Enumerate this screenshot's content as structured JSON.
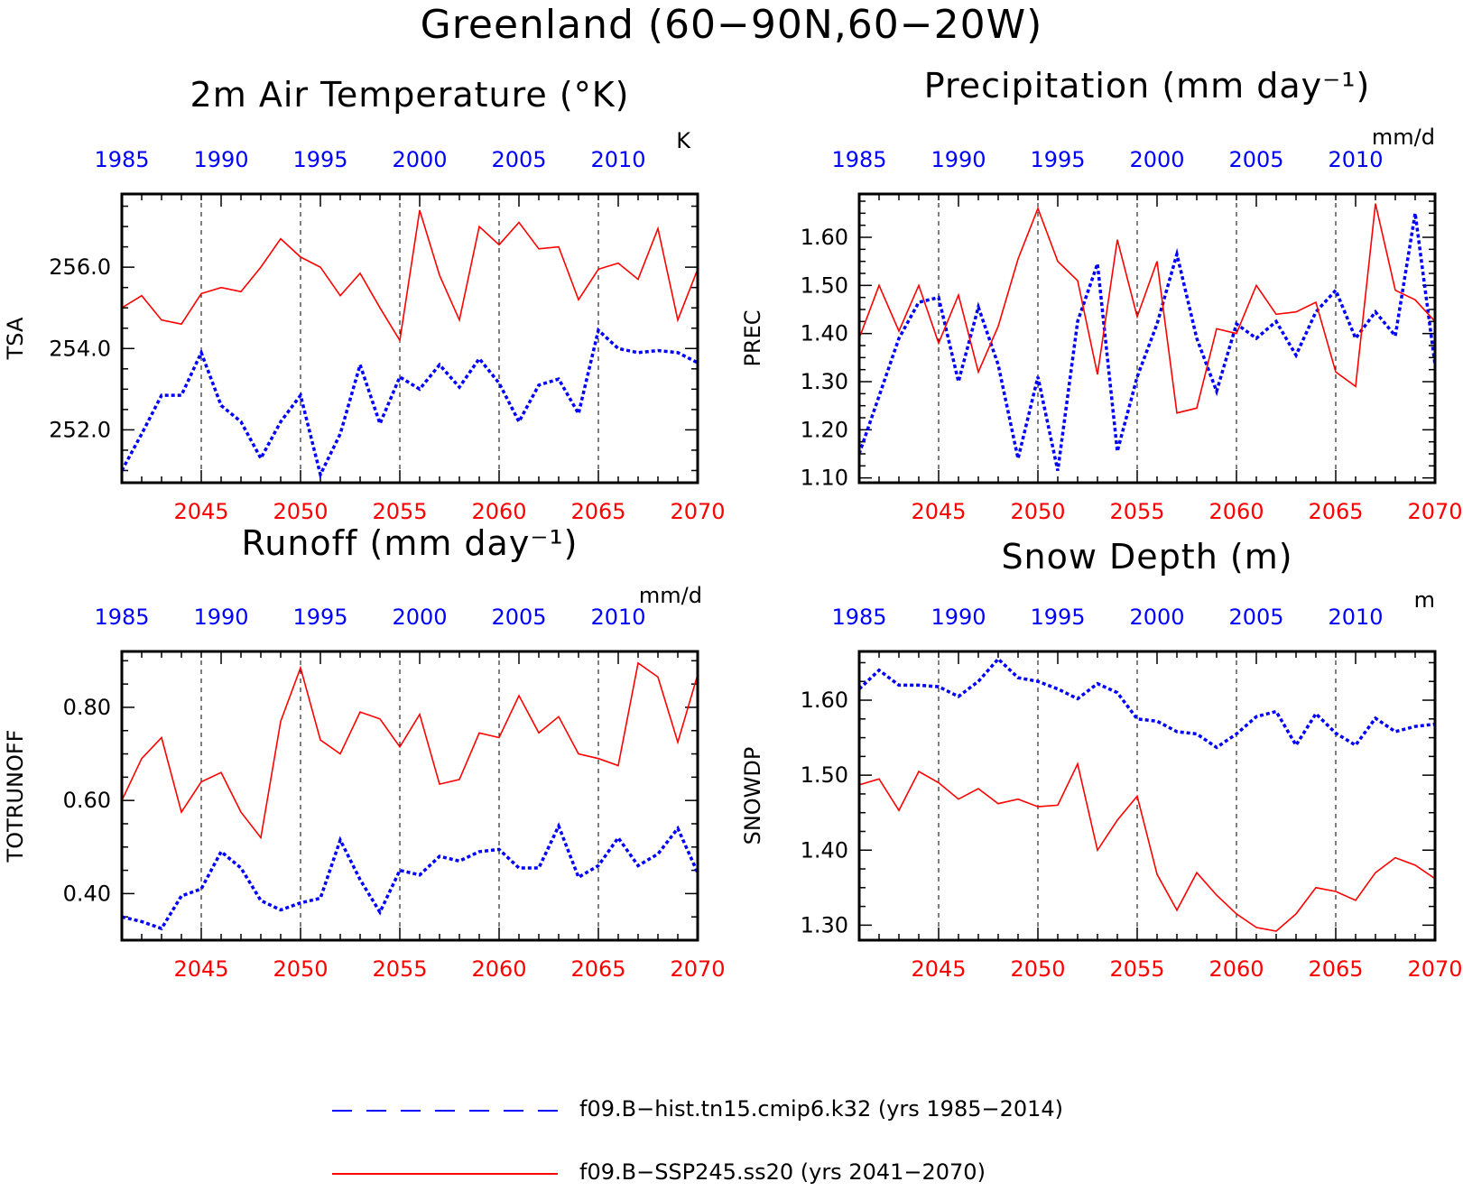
{
  "figure": {
    "title": "Greenland (60−90N,60−20W)"
  },
  "colors": {
    "hist": "#0000ff",
    "ssp": "#ff0000",
    "axis": "#000000",
    "grid": "#000000"
  },
  "legend": [
    {
      "label": "f09.B−hist.tn15.cmip6.k32 (yrs 1985−2014)",
      "color": "#0000ff",
      "style": "dashed"
    },
    {
      "label": "f09.B−SSP245.ss20 (yrs 2041−2070)",
      "color": "#ff0000",
      "style": "solid"
    }
  ],
  "chart_data": [
    {
      "type": "line",
      "title": "2m Air Temperature (°K)",
      "ylabel": "TSA",
      "units": "K",
      "ylim": [
        250.7,
        257.8
      ],
      "yticks": [
        252.0,
        254.0,
        256.0
      ],
      "ytick_labels": [
        "252.0",
        "254.0",
        "256.0"
      ],
      "top_xlim": [
        1985,
        2014
      ],
      "top_xticks": [
        1985,
        1990,
        1995,
        2000,
        2005,
        2010
      ],
      "bottom_xlim": [
        2041,
        2070
      ],
      "bottom_xticks": [
        2045,
        2050,
        2055,
        2060,
        2065,
        2070
      ],
      "grid": "dashed vertical lines at bottom ticks",
      "series": [
        {
          "key": "hist",
          "axis": "top",
          "x_start": 1985,
          "values": [
            251.0,
            251.9,
            252.85,
            252.85,
            253.9,
            252.6,
            252.2,
            251.3,
            252.2,
            252.85,
            250.9,
            251.9,
            253.6,
            252.15,
            253.3,
            253.0,
            253.6,
            253.05,
            253.75,
            253.15,
            252.2,
            253.1,
            253.25,
            252.4,
            254.45,
            254.0,
            253.9,
            253.95,
            253.9,
            253.65
          ]
        },
        {
          "key": "ssp",
          "axis": "bottom",
          "x_start": 2041,
          "values": [
            255.0,
            255.3,
            254.7,
            254.6,
            255.35,
            255.5,
            255.4,
            256.0,
            256.7,
            256.25,
            256.0,
            255.3,
            255.85,
            255.0,
            254.2,
            257.4,
            255.8,
            254.7,
            257.0,
            256.55,
            257.1,
            256.45,
            256.5,
            255.2,
            255.95,
            256.1,
            255.7,
            256.95,
            254.7,
            255.95
          ]
        }
      ]
    },
    {
      "type": "line",
      "title": "Precipitation (mm day⁻¹)",
      "ylabel": "PREC",
      "units": "mm/d",
      "ylim": [
        1.09,
        1.69
      ],
      "yticks": [
        1.1,
        1.2,
        1.3,
        1.4,
        1.5,
        1.6
      ],
      "ytick_labels": [
        "1.10",
        "1.20",
        "1.30",
        "1.40",
        "1.50",
        "1.60"
      ],
      "top_xlim": [
        1985,
        2014
      ],
      "top_xticks": [
        1985,
        1990,
        1995,
        2000,
        2005,
        2010
      ],
      "bottom_xlim": [
        2041,
        2070
      ],
      "bottom_xticks": [
        2045,
        2050,
        2055,
        2060,
        2065,
        2070
      ],
      "grid": "dashed vertical lines at bottom ticks",
      "series": [
        {
          "key": "hist",
          "axis": "top",
          "x_start": 1985,
          "values": [
            1.15,
            1.27,
            1.39,
            1.465,
            1.475,
            1.3,
            1.455,
            1.335,
            1.14,
            1.31,
            1.115,
            1.425,
            1.545,
            1.155,
            1.31,
            1.42,
            1.565,
            1.39,
            1.28,
            1.42,
            1.39,
            1.425,
            1.355,
            1.445,
            1.49,
            1.39,
            1.445,
            1.395,
            1.65,
            1.335
          ]
        },
        {
          "key": "ssp",
          "axis": "bottom",
          "x_start": 2041,
          "values": [
            1.39,
            1.5,
            1.405,
            1.5,
            1.38,
            1.48,
            1.32,
            1.415,
            1.555,
            1.66,
            1.55,
            1.51,
            1.315,
            1.595,
            1.435,
            1.55,
            1.235,
            1.245,
            1.41,
            1.4,
            1.5,
            1.44,
            1.445,
            1.465,
            1.32,
            1.29,
            1.67,
            1.49,
            1.47,
            1.425
          ]
        }
      ]
    },
    {
      "type": "line",
      "title": "Runoff (mm day⁻¹)",
      "ylabel": "TOTRUNOFF",
      "units": "mm/d",
      "ylim": [
        0.3,
        0.92
      ],
      "yticks": [
        0.4,
        0.6,
        0.8
      ],
      "ytick_labels": [
        "0.40",
        "0.60",
        "0.80"
      ],
      "top_xlim": [
        1985,
        2014
      ],
      "top_xticks": [
        1985,
        1990,
        1995,
        2000,
        2005,
        2010
      ],
      "bottom_xlim": [
        2041,
        2070
      ],
      "bottom_xticks": [
        2045,
        2050,
        2055,
        2060,
        2065,
        2070
      ],
      "grid": "dashed vertical lines at bottom ticks",
      "series": [
        {
          "key": "hist",
          "axis": "top",
          "x_start": 1985,
          "values": [
            0.35,
            0.34,
            0.325,
            0.395,
            0.41,
            0.49,
            0.455,
            0.385,
            0.365,
            0.38,
            0.39,
            0.515,
            0.43,
            0.36,
            0.45,
            0.44,
            0.48,
            0.47,
            0.49,
            0.495,
            0.455,
            0.455,
            0.545,
            0.435,
            0.46,
            0.52,
            0.46,
            0.485,
            0.54,
            0.445
          ]
        },
        {
          "key": "ssp",
          "axis": "bottom",
          "x_start": 2041,
          "values": [
            0.6,
            0.69,
            0.735,
            0.575,
            0.64,
            0.66,
            0.575,
            0.52,
            0.77,
            0.885,
            0.73,
            0.7,
            0.79,
            0.775,
            0.715,
            0.785,
            0.635,
            0.645,
            0.745,
            0.735,
            0.825,
            0.745,
            0.78,
            0.7,
            0.69,
            0.675,
            0.895,
            0.865,
            0.725,
            0.87
          ]
        }
      ]
    },
    {
      "type": "line",
      "title": "Snow Depth (m)",
      "ylabel": "SNOWDP",
      "units": "m",
      "ylim": [
        1.28,
        1.665
      ],
      "yticks": [
        1.3,
        1.4,
        1.5,
        1.6
      ],
      "ytick_labels": [
        "1.30",
        "1.40",
        "1.50",
        "1.60"
      ],
      "top_xlim": [
        1985,
        2014
      ],
      "top_xticks": [
        1985,
        1990,
        1995,
        2000,
        2005,
        2010
      ],
      "bottom_xlim": [
        2041,
        2070
      ],
      "bottom_xticks": [
        2045,
        2050,
        2055,
        2060,
        2065,
        2070
      ],
      "grid": "dashed vertical lines at bottom ticks",
      "series": [
        {
          "key": "hist",
          "axis": "top",
          "x_start": 1985,
          "values": [
            1.615,
            1.64,
            1.62,
            1.62,
            1.618,
            1.605,
            1.625,
            1.655,
            1.63,
            1.625,
            1.615,
            1.602,
            1.622,
            1.61,
            1.575,
            1.572,
            1.558,
            1.555,
            1.537,
            1.555,
            1.578,
            1.585,
            1.54,
            1.582,
            1.556,
            1.54,
            1.576,
            1.558,
            1.565,
            1.568
          ]
        },
        {
          "key": "ssp",
          "axis": "bottom",
          "x_start": 2041,
          "values": [
            1.487,
            1.495,
            1.453,
            1.505,
            1.49,
            1.468,
            1.482,
            1.462,
            1.468,
            1.458,
            1.46,
            1.515,
            1.4,
            1.44,
            1.472,
            1.368,
            1.32,
            1.37,
            1.34,
            1.315,
            1.297,
            1.292,
            1.315,
            1.35,
            1.345,
            1.333,
            1.37,
            1.39,
            1.38,
            1.362
          ]
        }
      ]
    }
  ]
}
